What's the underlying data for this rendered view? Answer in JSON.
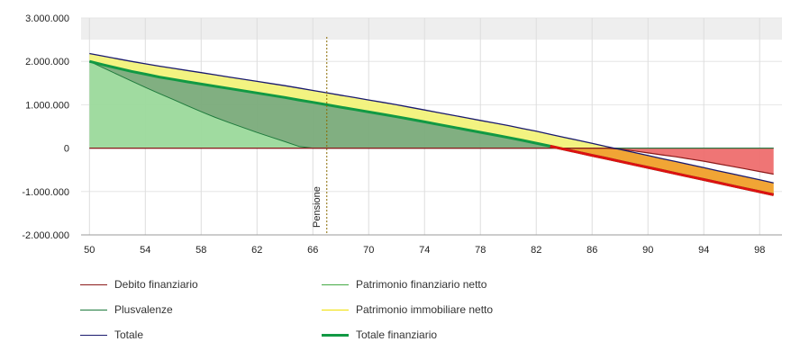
{
  "chart_data": {
    "type": "area",
    "x": [
      50,
      51,
      52,
      53,
      54,
      55,
      56,
      57,
      58,
      59,
      60,
      61,
      62,
      63,
      64,
      65,
      66,
      67,
      68,
      69,
      70,
      71,
      72,
      73,
      74,
      75,
      76,
      77,
      78,
      79,
      80,
      81,
      82,
      83,
      84,
      85,
      86,
      87,
      88,
      89,
      90,
      91,
      92,
      93,
      94,
      95,
      96,
      97,
      98,
      99
    ],
    "xticks": [
      50,
      54,
      58,
      62,
      66,
      70,
      74,
      78,
      82,
      86,
      90,
      94,
      98
    ],
    "yticks": [
      3000000,
      2000000,
      1000000,
      0,
      -1000000,
      -2000000
    ],
    "ytick_labels": [
      "3.000.000",
      "2.000.000",
      "1.000.000",
      "0",
      "-1.000.000",
      "-2.000.000"
    ],
    "ylim": [
      -2000000,
      3000000
    ],
    "xlim": [
      49.4,
      99.6
    ],
    "grid": true,
    "legend_position": "bottom",
    "annotation": {
      "x": 67,
      "label": "Pensione"
    },
    "series": [
      {
        "name": "Debito finanziario",
        "color": "#8b1a1a",
        "values": [
          0,
          0,
          0,
          0,
          0,
          0,
          0,
          0,
          0,
          0,
          0,
          0,
          0,
          0,
          0,
          0,
          0,
          0,
          0,
          0,
          0,
          0,
          0,
          0,
          0,
          0,
          0,
          0,
          0,
          0,
          0,
          0,
          0,
          0,
          0,
          0,
          0,
          0,
          -20000,
          -65000,
          -110000,
          -155000,
          -200000,
          -250000,
          -300000,
          -360000,
          -420000,
          -480000,
          -540000,
          -600000
        ]
      },
      {
        "name": "Patrimonio finanziario netto",
        "color": "#44aa44",
        "values": [
          2000000,
          1895000,
          1790000,
          1685000,
          1575000,
          1465000,
          1355000,
          1245000,
          1130000,
          1020000,
          910000,
          800000,
          690000,
          590000,
          490000,
          390000,
          295000,
          200000,
          125000,
          55000,
          0,
          0,
          0,
          0,
          0,
          0,
          0,
          0,
          0,
          0,
          0,
          0,
          0,
          0,
          0,
          0,
          0,
          0,
          0,
          0,
          0,
          0,
          0,
          0,
          0,
          0,
          0,
          0,
          0,
          0
        ]
      },
      {
        "name": "Plusvalenze",
        "color": "#1e7a3c",
        "values": [
          2000000,
          1850000,
          1700000,
          1550000,
          1400000,
          1260000,
          1120000,
          980000,
          840000,
          710000,
          590000,
          475000,
          360000,
          255000,
          150000,
          40000,
          -55000,
          -150000,
          -225000,
          -300000,
          -360000,
          -420000,
          -480000,
          -540000,
          -600000,
          -620000,
          -630000,
          -640000,
          -640000,
          -640000,
          -640000,
          -640000,
          -640000,
          -640000,
          -640000,
          -640000,
          -640000,
          -640000,
          -640000,
          -640000,
          -640000,
          -640000,
          -640000,
          -640000,
          -640000,
          -640000,
          -640000,
          -640000,
          -640000,
          -640000
        ]
      },
      {
        "name": "Patrimonio immobiliare netto",
        "color": "#f0e000",
        "values": [
          180000,
          200000,
          215000,
          230000,
          240000,
          250000,
          255000,
          260000,
          262000,
          264000,
          265000,
          266000,
          268000,
          270000,
          272000,
          275000,
          275000,
          275000,
          275000,
          275000,
          275000,
          275000,
          275000,
          275000,
          275000,
          275000,
          275000,
          275000,
          275000,
          275000,
          275000,
          275000,
          275000,
          275000,
          275000,
          275000,
          275000,
          275000,
          275000,
          275000,
          275000,
          275000,
          275000,
          275000,
          275000,
          275000,
          275000,
          275000,
          275000,
          275000
        ]
      },
      {
        "name": "Totale",
        "color": "#1a1a6e",
        "values": [
          2180000,
          2120000,
          2060000,
          2000000,
          1945000,
          1890000,
          1840000,
          1790000,
          1740000,
          1690000,
          1640000,
          1590000,
          1540000,
          1490000,
          1440000,
          1385000,
          1330000,
          1275000,
          1220000,
          1165000,
          1110000,
          1055000,
          1000000,
          940000,
          880000,
          820000,
          760000,
          700000,
          640000,
          580000,
          520000,
          455000,
          390000,
          320000,
          250000,
          180000,
          110000,
          40000,
          -30000,
          -100000,
          -170000,
          -240000,
          -310000,
          -380000,
          -450000,
          -520000,
          -590000,
          -660000,
          -730000,
          -800000
        ]
      },
      {
        "name": "Totale finanziario",
        "color": "#119944",
        "values": [
          2000000,
          1920000,
          1845000,
          1770000,
          1705000,
          1640000,
          1585000,
          1530000,
          1478000,
          1426000,
          1375000,
          1324000,
          1272000,
          1220000,
          1168000,
          1110000,
          1055000,
          1000000,
          945000,
          890000,
          835000,
          780000,
          725000,
          665000,
          605000,
          545000,
          485000,
          425000,
          365000,
          305000,
          245000,
          180000,
          115000,
          45000,
          -25000,
          -95000,
          -165000,
          -235000,
          -305000,
          -375000,
          -445000,
          -515000,
          -585000,
          -655000,
          -725000,
          -795000,
          -865000,
          -935000,
          -1005000,
          -1075000
        ]
      }
    ]
  }
}
